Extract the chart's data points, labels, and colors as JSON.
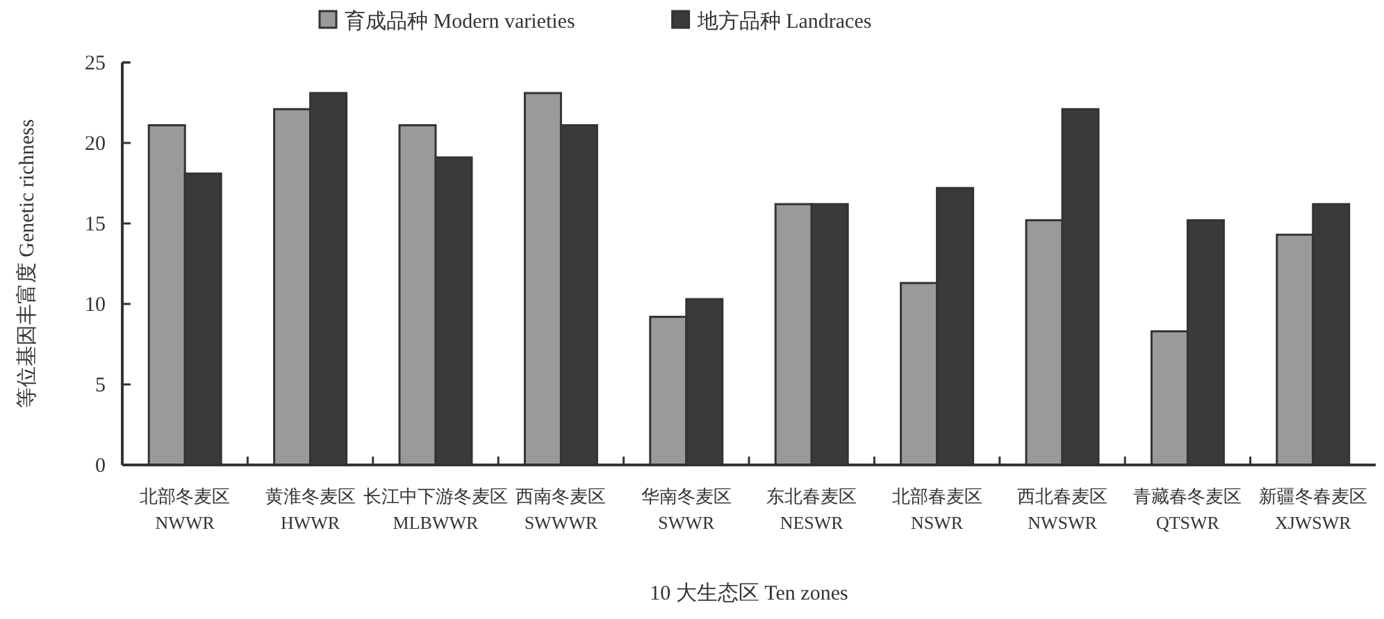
{
  "chart_data": {
    "type": "bar",
    "xlabel": "10 大生态区 Ten zones",
    "ylabel": "等位基因丰富度 Genetic richness",
    "categories": [
      "北部冬麦区\nNWWR",
      "黄淮冬麦区\nHWWR",
      "长江中下游冬麦区\nMLBWWR",
      "西南冬麦区\nSWWWR",
      "华南冬麦区\nSWWR",
      "东北春麦区\nNESWR",
      "北部春麦区\nNSWR",
      "西北春麦区\nNWSWR",
      "青藏春冬麦区\nQTSWR",
      "新疆冬春麦区\nXJWSWR"
    ],
    "series": [
      {
        "name": "育成品种 Modern varieties",
        "color": "#9a9a9a",
        "values": [
          21.1,
          22.1,
          21.1,
          23.1,
          9.2,
          16.2,
          11.3,
          15.2,
          8.3,
          14.3
        ]
      },
      {
        "name": "地方品种 Landraces",
        "color": "#3a3a3a",
        "values": [
          18.1,
          23.1,
          19.1,
          21.1,
          10.3,
          16.2,
          17.2,
          22.1,
          15.2,
          16.2
        ]
      }
    ],
    "ylim": [
      0,
      25
    ],
    "yticks": [
      0,
      5,
      10,
      15,
      20,
      25
    ],
    "legend": "top"
  }
}
